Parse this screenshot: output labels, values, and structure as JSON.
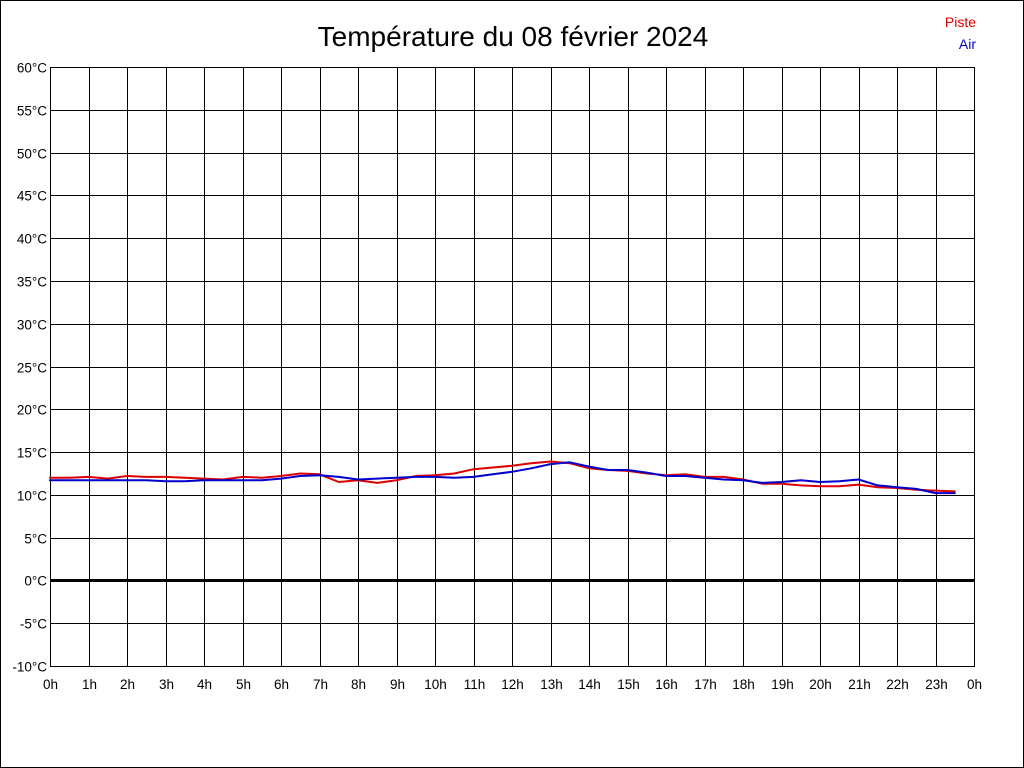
{
  "chart_data": {
    "type": "line",
    "title": "Température du 08 février 2024",
    "xlabel": "",
    "ylabel": "",
    "x_ticks": [
      "0h",
      "1h",
      "2h",
      "3h",
      "4h",
      "5h",
      "6h",
      "7h",
      "8h",
      "9h",
      "10h",
      "11h",
      "12h",
      "13h",
      "14h",
      "15h",
      "16h",
      "17h",
      "18h",
      "19h",
      "20h",
      "21h",
      "22h",
      "23h",
      "0h"
    ],
    "y_ticks": [
      "60°C",
      "55°C",
      "50°C",
      "45°C",
      "40°C",
      "35°C",
      "30°C",
      "25°C",
      "20°C",
      "15°C",
      "10°C",
      "5°C",
      "0°C",
      "-5°C",
      "-10°C"
    ],
    "xlim": [
      0,
      24
    ],
    "ylim": [
      -10,
      60
    ],
    "grid": true,
    "legend_position": "top-right",
    "series": [
      {
        "name": "Piste",
        "color": "#dd0000",
        "x": [
          0,
          0.5,
          1,
          1.5,
          2,
          2.5,
          3,
          3.5,
          4,
          4.5,
          5,
          5.5,
          6,
          6.5,
          7,
          7.5,
          8,
          8.5,
          9,
          9.5,
          10,
          10.5,
          11,
          11.5,
          12,
          12.5,
          13,
          13.5,
          14,
          14.5,
          15,
          15.5,
          16,
          16.5,
          17,
          17.5,
          18,
          18.5,
          19,
          19.5,
          20,
          20.5,
          21,
          21.5,
          22,
          22.5,
          23,
          23.5
        ],
        "y": [
          12,
          12,
          12.1,
          11.9,
          12.2,
          12.1,
          12.1,
          12,
          11.9,
          11.8,
          12.1,
          12,
          12.2,
          12.5,
          12.4,
          11.5,
          11.7,
          11.4,
          11.7,
          12.2,
          12.3,
          12.5,
          13,
          13.2,
          13.4,
          13.7,
          13.9,
          13.7,
          13.1,
          12.9,
          12.8,
          12.5,
          12.3,
          12.4,
          12.1,
          12.1,
          11.8,
          11.3,
          11.3,
          11.1,
          11,
          11,
          11.2,
          10.9,
          10.8,
          10.6,
          10.5,
          10.4
        ]
      },
      {
        "name": "Air",
        "color": "#0000cc",
        "x": [
          0,
          0.5,
          1,
          1.5,
          2,
          2.5,
          3,
          3.5,
          4,
          4.5,
          5,
          5.5,
          6,
          6.5,
          7,
          7.5,
          8,
          8.5,
          9,
          9.5,
          10,
          10.5,
          11,
          11.5,
          12,
          12.5,
          13,
          13.5,
          14,
          14.5,
          15,
          15.5,
          16,
          16.5,
          17,
          17.5,
          18,
          18.5,
          19,
          19.5,
          20,
          20.5,
          21,
          21.5,
          22,
          22.5,
          23,
          23.5
        ],
        "y": [
          11.7,
          11.7,
          11.7,
          11.7,
          11.7,
          11.7,
          11.6,
          11.6,
          11.7,
          11.7,
          11.7,
          11.7,
          11.9,
          12.2,
          12.3,
          12.1,
          11.8,
          11.9,
          12,
          12.1,
          12.1,
          12,
          12.1,
          12.4,
          12.7,
          13.1,
          13.6,
          13.8,
          13.3,
          12.9,
          12.9,
          12.6,
          12.2,
          12.2,
          12,
          11.8,
          11.7,
          11.4,
          11.5,
          11.7,
          11.5,
          11.6,
          11.8,
          11.1,
          10.9,
          10.7,
          10.2,
          10.2
        ]
      }
    ]
  }
}
